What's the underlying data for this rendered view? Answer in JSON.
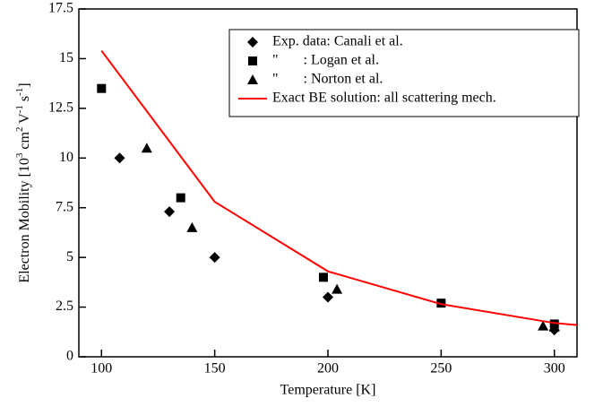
{
  "chart_data": {
    "type": "scatter",
    "xlabel": "Temperature [K]",
    "ylabel_parts": [
      "Electron Mobility [10",
      "3",
      " cm",
      "2",
      " V",
      "-1",
      " s",
      "-1",
      "]"
    ],
    "xlim": [
      90,
      310
    ],
    "xticks": [
      100,
      150,
      200,
      250,
      300
    ],
    "ylim": [
      0,
      17.5
    ],
    "yticks": [
      0,
      2.5,
      5,
      7.5,
      10,
      12.5,
      15,
      17.5
    ],
    "legend": "upper right",
    "series": [
      {
        "name": "Exp. data: Canali et al.",
        "marker": "diamond",
        "color": "#000000",
        "x": [
          108,
          130,
          150,
          200,
          300
        ],
        "y": [
          10,
          7.3,
          5,
          3,
          1.35
        ]
      },
      {
        "name": "\"       : Logan et al.",
        "marker": "square",
        "color": "#000000",
        "x": [
          100,
          135,
          198,
          250,
          300
        ],
        "y": [
          13.5,
          8,
          4,
          2.7,
          1.65
        ]
      },
      {
        "name": "\"       : Norton et al.",
        "marker": "triangle",
        "color": "#000000",
        "x": [
          120,
          140,
          204,
          295,
          300
        ],
        "y": [
          10.5,
          6.5,
          3.4,
          1.55,
          1.5
        ]
      },
      {
        "name": "Exact BE solution: all scattering mech.",
        "marker": "line",
        "color": "#ff0000",
        "x": [
          100,
          150,
          200,
          250,
          300,
          310
        ],
        "y": [
          15.4,
          7.8,
          4.3,
          2.65,
          1.7,
          1.6
        ]
      }
    ]
  }
}
